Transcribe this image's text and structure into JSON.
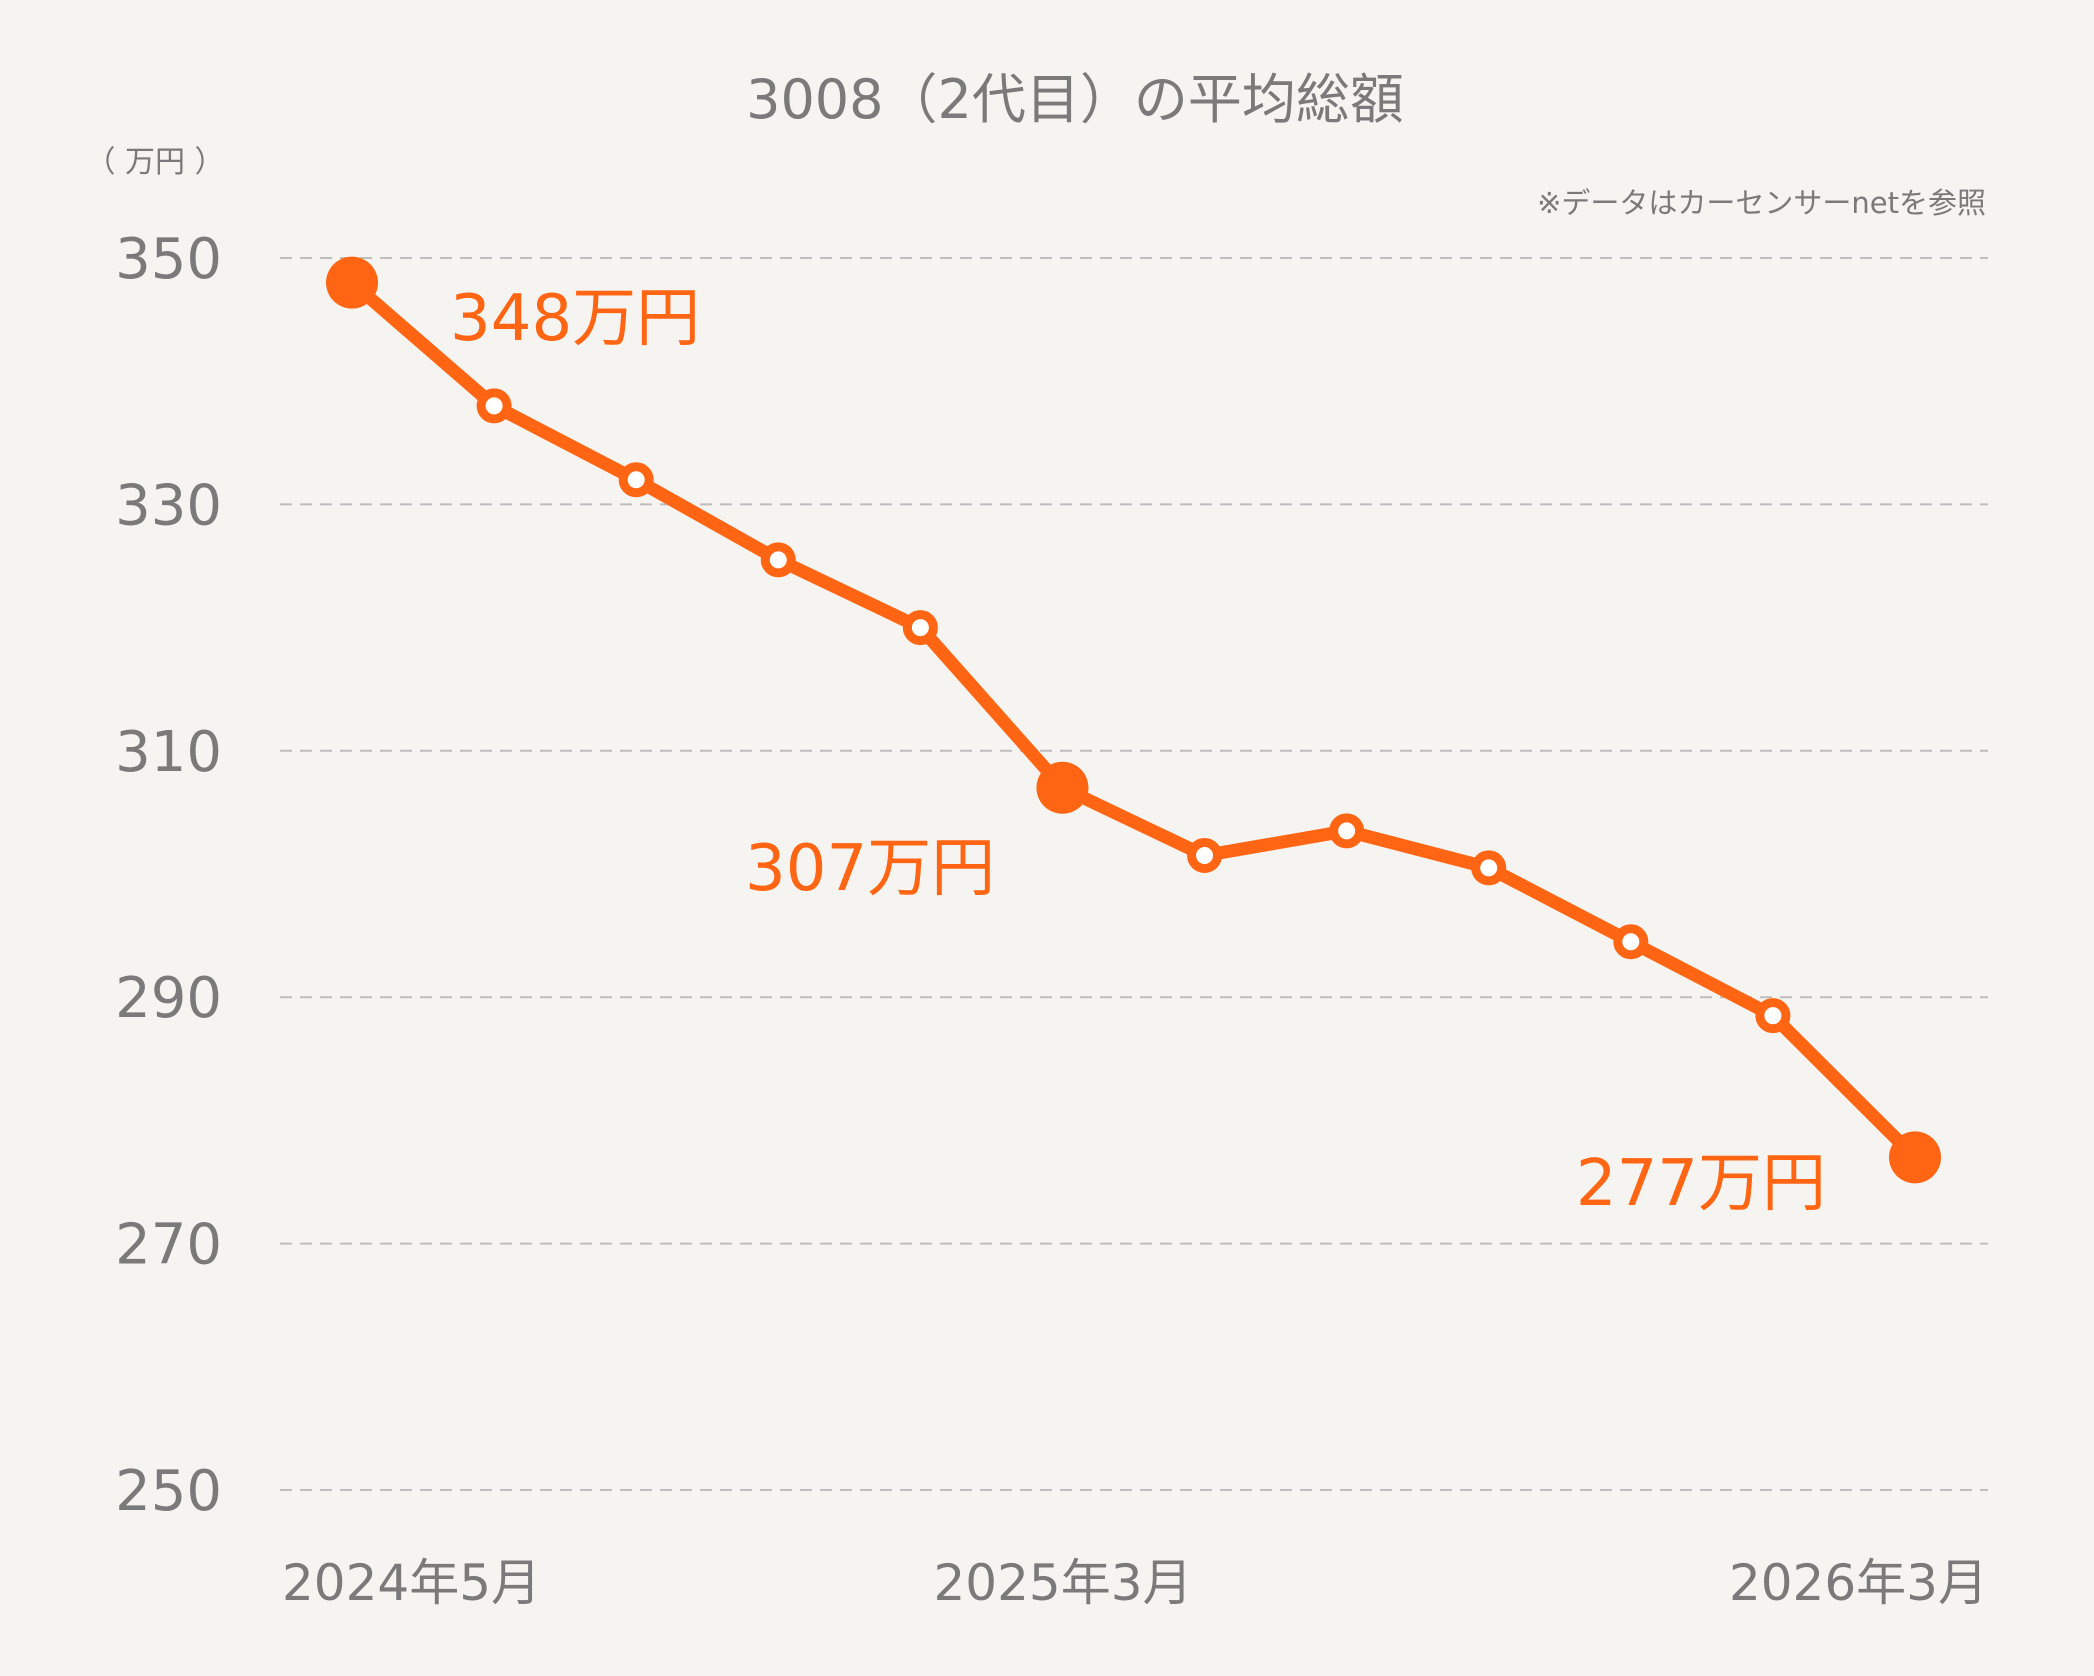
{
  "chart_data": {
    "type": "line",
    "title": "3008（2代目）の平均総額",
    "ylabel": "（ 万円 ）",
    "note": "※データはカーセンサーnetを参照",
    "ylim": [
      250,
      350
    ],
    "yticks": [
      350,
      330,
      310,
      290,
      270,
      250
    ],
    "x_tick_labels": [
      "2024年5月",
      "2025年3月",
      "2026年3月"
    ],
    "series": [
      {
        "values": [
          348,
          338,
          332,
          325.5,
          320,
          307,
          301.5,
          303.5,
          300.5,
          294.5,
          288.5,
          277
        ]
      }
    ],
    "highlight_points": [
      {
        "index": 0,
        "label": "348万円"
      },
      {
        "index": 5,
        "label": "307万円"
      },
      {
        "index": 11,
        "label": "277万円"
      }
    ],
    "line_color": "#ff6512",
    "grid": true
  }
}
